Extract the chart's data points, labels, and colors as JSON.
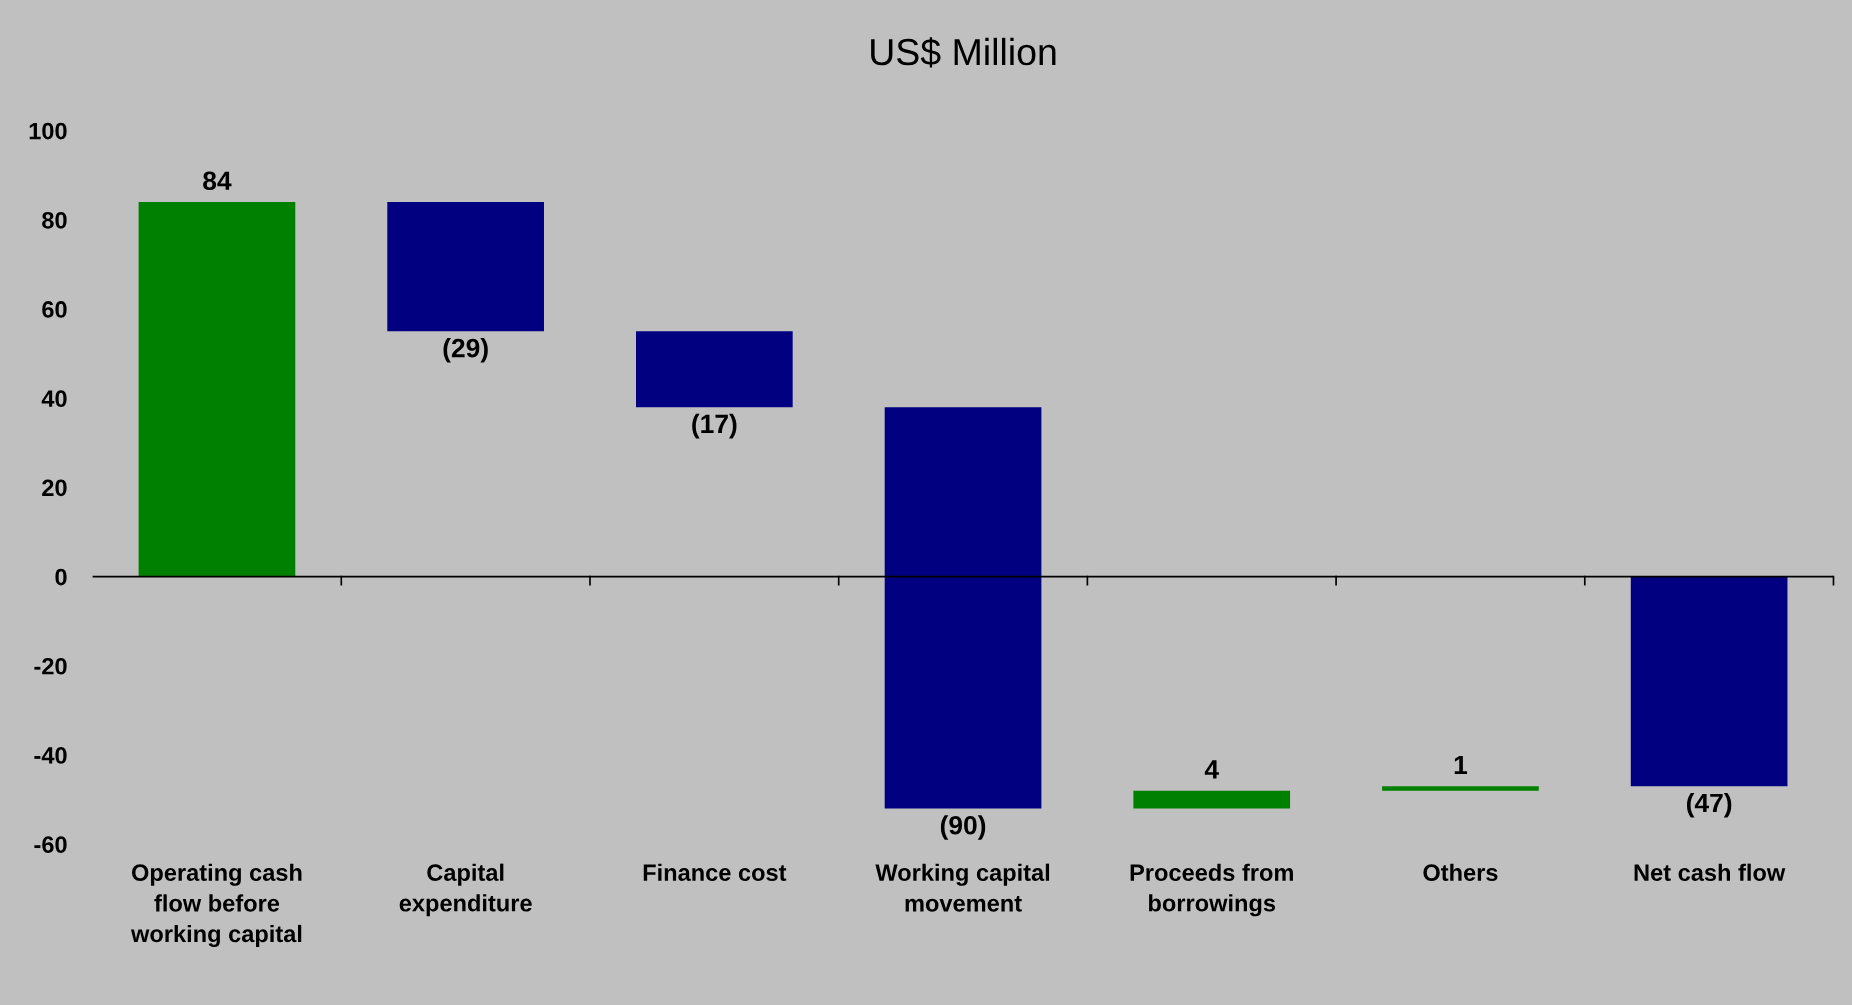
{
  "chart_data": {
    "type": "bar",
    "title": "US$ Million",
    "categories": [
      "Operating cash\nflow before\nworking capital",
      "Capital\nexpenditure",
      "Finance cost",
      "Working capital\nmovement",
      "Proceeds from\nborrowings",
      "Others",
      "Net cash flow"
    ],
    "values": [
      84,
      -29,
      -17,
      -90,
      4,
      1,
      -47
    ],
    "base": [
      0,
      84,
      55,
      38,
      -52,
      -48,
      0
    ],
    "colors": [
      "#008000",
      "#000080",
      "#000080",
      "#000080",
      "#008000",
      "#008000",
      "#000080"
    ],
    "value_labels": [
      "84",
      "(29)",
      "(17)",
      "(90)",
      "4",
      "1",
      "(47)"
    ],
    "ylim": [
      -60,
      100
    ],
    "yticks": [
      -60,
      -40,
      -20,
      0,
      20,
      40,
      60,
      80,
      100
    ],
    "ref_lines": [
      {
        "axis": "y",
        "value": 0,
        "color": "#000000"
      }
    ],
    "grid": false,
    "legend": false
  }
}
